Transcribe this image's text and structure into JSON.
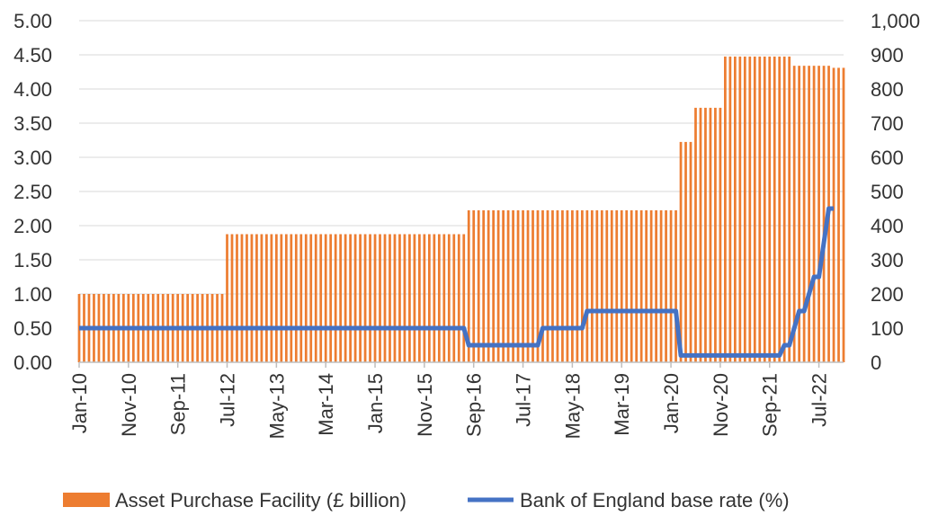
{
  "chart_data": {
    "type": "bar+line",
    "title": "",
    "x_tick_labels": [
      "Jan-10",
      "Nov-10",
      "Sep-11",
      "Jul-12",
      "May-13",
      "Mar-14",
      "Jan-15",
      "Nov-15",
      "Sep-16",
      "Jul-17",
      "May-18",
      "Mar-19",
      "Jan-20",
      "Nov-20",
      "Sep-21",
      "Jul-22"
    ],
    "left_axis": {
      "ylim": [
        0,
        5
      ],
      "tick_labels": [
        "0.00",
        "0.50",
        "1.00",
        "1.50",
        "2.00",
        "2.50",
        "3.00",
        "3.50",
        "4.00",
        "4.50",
        "5.00"
      ]
    },
    "right_axis": {
      "ylim": [
        0,
        1000
      ],
      "tick_labels": [
        "0",
        "100",
        "200",
        "300",
        "400",
        "500",
        "600",
        "700",
        "800",
        "900",
        "1,000"
      ]
    },
    "bar_steps": [
      {
        "from": "2010-01",
        "to": "2012-06",
        "value": 200
      },
      {
        "from": "2012-07",
        "to": "2016-07",
        "value": 375
      },
      {
        "from": "2016-08",
        "to": "2020-02",
        "value": 445
      },
      {
        "from": "2020-03",
        "to": "2020-05",
        "value": 645
      },
      {
        "from": "2020-06",
        "to": "2020-11",
        "value": 745
      },
      {
        "from": "2020-12",
        "to": "2022-01",
        "value": 895
      },
      {
        "from": "2022-02",
        "to": "2022-09",
        "value": 868
      },
      {
        "from": "2022-10",
        "to": "2022-12",
        "value": 862
      }
    ],
    "line_steps": [
      {
        "from": "2010-01",
        "to": "2016-07",
        "value": 0.5
      },
      {
        "from": "2016-08",
        "to": "2017-10",
        "value": 0.25
      },
      {
        "from": "2017-11",
        "to": "2018-07",
        "value": 0.5
      },
      {
        "from": "2018-08",
        "to": "2020-02",
        "value": 0.75
      },
      {
        "from": "2020-03",
        "to": "2021-11",
        "value": 0.1
      },
      {
        "from": "2021-12",
        "to": "2022-01",
        "value": 0.25
      },
      {
        "from": "2022-02",
        "to": "2022-02",
        "value": 0.5
      },
      {
        "from": "2022-03",
        "to": "2022-04",
        "value": 0.75
      },
      {
        "from": "2022-05",
        "to": "2022-05",
        "value": 1.0
      },
      {
        "from": "2022-06",
        "to": "2022-07",
        "value": 1.25
      },
      {
        "from": "2022-08",
        "to": "2022-08",
        "value": 1.75
      },
      {
        "from": "2022-09",
        "to": "2022-10",
        "value": 2.25
      }
    ],
    "series": [
      {
        "name": "Asset Purchase Facility (£ billion)",
        "kind": "bar",
        "axis": "right",
        "color": "#ED7D31"
      },
      {
        "name": "Bank of England base rate (%)",
        "kind": "line",
        "axis": "left",
        "color": "#4472C4"
      }
    ],
    "legend_position": "bottom",
    "grid": true
  }
}
